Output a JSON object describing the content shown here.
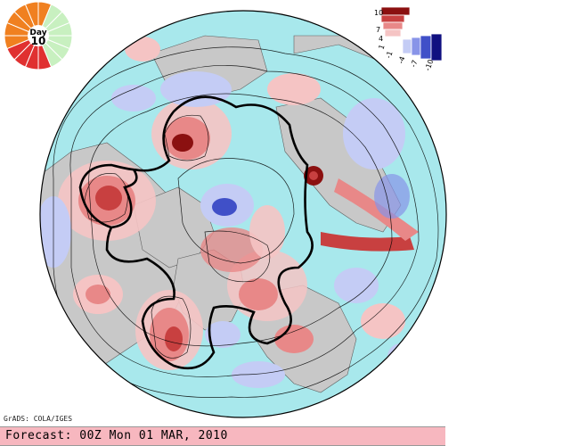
{
  "footer": {
    "text": "Forecast: 00Z Mon 01 MAR, 2010"
  },
  "credit": "GrADS: COLA/IGES",
  "day_indicator": {
    "top_label": "Day",
    "value": "10",
    "elapsed_days": 10,
    "total_days": 16,
    "elapsed_color": "#f08020",
    "remaining_color": "#c8f0c0",
    "past_marks_color": "#e03030"
  },
  "legend": {
    "labels": [
      "10",
      "7",
      "4",
      "1",
      "-1",
      "-4",
      "-7",
      "-10"
    ],
    "positive_colors": [
      "#8b1010",
      "#c84040",
      "#e88888",
      "#f5c4c4"
    ],
    "negative_colors": [
      "#c4ccf5",
      "#8894e8",
      "#4050c8",
      "#101080"
    ]
  },
  "map": {
    "ocean_color": "#a8e8ec",
    "land_color": "#c8c8c8",
    "border_color": "#606060"
  }
}
